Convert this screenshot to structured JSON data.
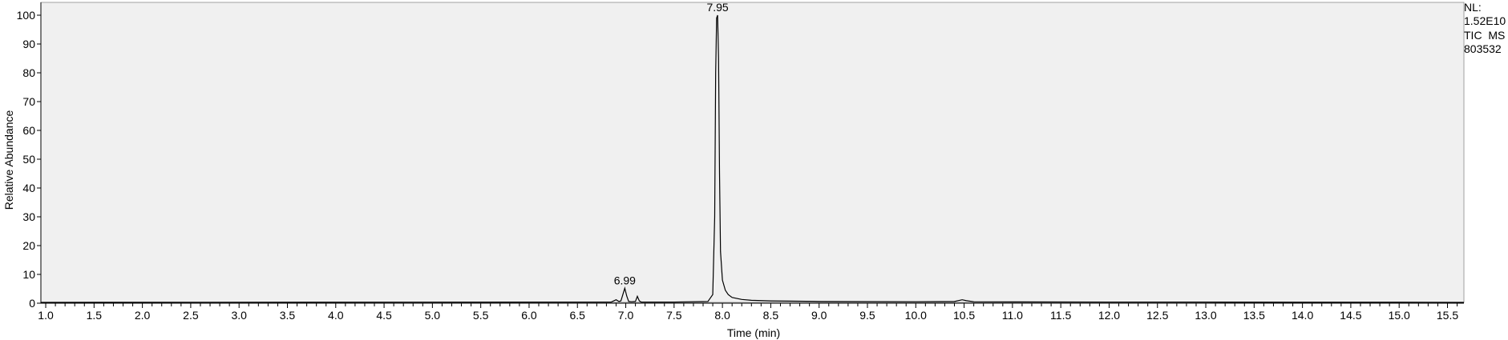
{
  "chart_data": {
    "type": "line",
    "xlabel": "Time (min)",
    "ylabel": "Relative Abundance",
    "xlim": [
      0.95,
      15.67
    ],
    "ylim": [
      0,
      100
    ],
    "x_ticks_major": [
      1.0,
      1.5,
      2.0,
      2.5,
      3.0,
      3.5,
      4.0,
      4.5,
      5.0,
      5.5,
      6.0,
      6.5,
      7.0,
      7.5,
      8.0,
      8.5,
      9.0,
      9.5,
      10.0,
      10.5,
      11.0,
      11.5,
      12.0,
      12.5,
      13.0,
      13.5,
      14.0,
      14.5,
      15.0,
      15.5
    ],
    "x_tick_labels": [
      "1.0",
      "1.5",
      "2.0",
      "2.5",
      "3.0",
      "3.5",
      "4.0",
      "4.5",
      "5.0",
      "5.5",
      "6.0",
      "6.5",
      "7.0",
      "7.5",
      "8.0",
      "8.5",
      "9.0",
      "9.5",
      "10.0",
      "10.5",
      "11.0",
      "11.5",
      "12.0",
      "12.5",
      "13.0",
      "13.5",
      "14.0",
      "14.5",
      "15.0",
      "15.5"
    ],
    "y_ticks": [
      0,
      10,
      20,
      30,
      40,
      50,
      60,
      70,
      80,
      90,
      100
    ],
    "y_tick_labels": [
      "0",
      "10",
      "20",
      "30",
      "40",
      "50",
      "60",
      "70",
      "80",
      "90",
      "100"
    ],
    "grid": false,
    "background_color": "#f0f0f0",
    "line_color": "#000000",
    "series": [
      {
        "x": [
          0.95,
          6.85,
          6.9,
          6.93,
          6.95,
          6.97,
          6.99,
          7.01,
          7.03,
          7.06,
          7.1,
          7.12,
          7.14,
          7.16,
          7.2,
          7.5,
          7.85,
          7.9,
          7.92,
          7.93,
          7.94,
          7.95,
          7.96,
          7.97,
          7.98,
          8.0,
          8.03,
          8.06,
          8.1,
          8.2,
          8.3,
          8.5,
          9.0,
          10.0,
          10.4,
          10.48,
          10.52,
          10.6,
          11.0,
          12.0,
          13.0,
          14.0,
          15.0,
          15.67
        ],
        "y": [
          0.3,
          0.4,
          1.2,
          0.6,
          0.8,
          3.0,
          5.2,
          2.5,
          0.6,
          0.5,
          0.6,
          2.4,
          0.8,
          0.4,
          0.4,
          0.4,
          0.6,
          3.0,
          30.0,
          80.0,
          99.0,
          100.0,
          85.0,
          45.0,
          18.0,
          8.0,
          4.5,
          3.0,
          2.0,
          1.3,
          1.0,
          0.8,
          0.6,
          0.5,
          0.6,
          1.2,
          0.9,
          0.5,
          0.45,
          0.4,
          0.4,
          0.35,
          0.35,
          0.3
        ]
      }
    ],
    "annotations": [
      {
        "text": "7.95",
        "x": 7.95,
        "y": 100
      },
      {
        "text": "6.99",
        "x": 6.99,
        "y": 5.2
      }
    ]
  },
  "info": {
    "line1": "NL:",
    "line2": "1.52E10",
    "line3": "TIC  MS",
    "line4": "803532"
  }
}
